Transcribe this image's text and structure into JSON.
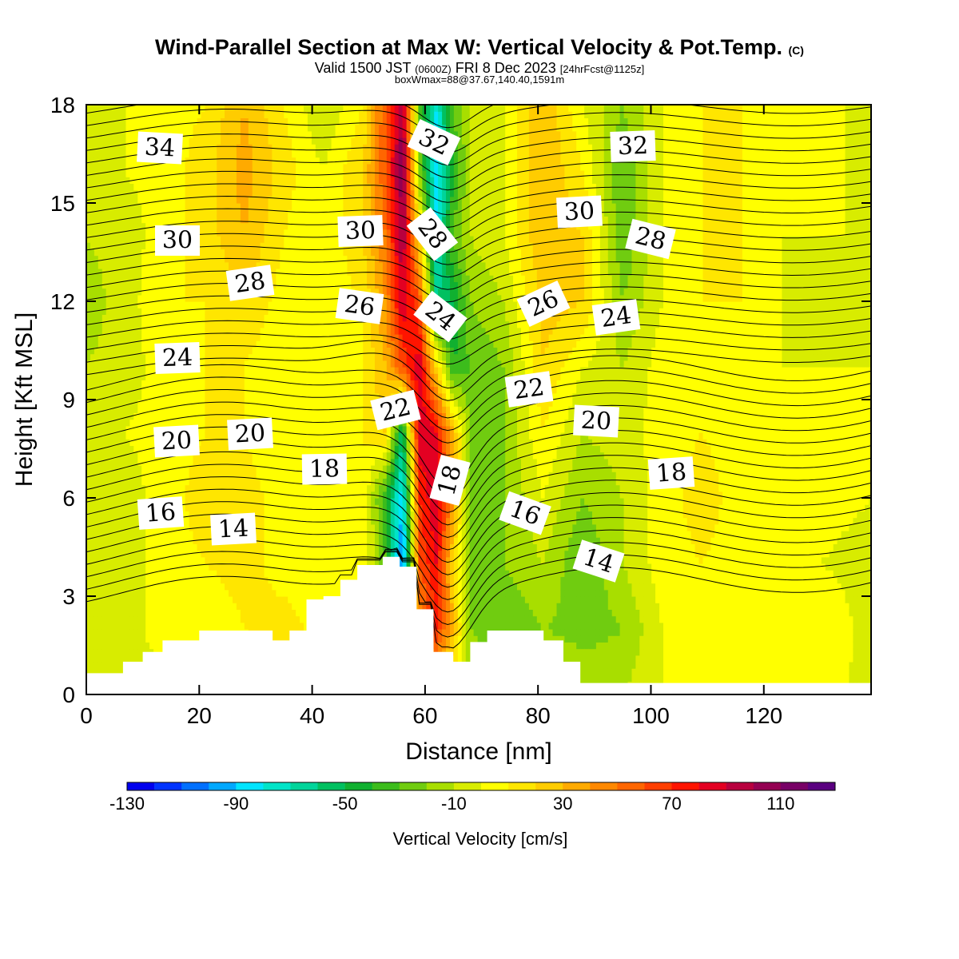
{
  "chart_data": {
    "type": "heatmap",
    "title": "Wind-Parallel Section at Max W: Vertical Velocity & Pot.Temp.",
    "title_mark": "(C)",
    "subtitle_valid": "Valid 1500 JST",
    "subtitle_utc": "(0600Z)",
    "subtitle_date": "FRI 8 Dec 2023",
    "subtitle_fcst": "[24hrFcst@1125z]",
    "subtitle2": "boxWmax=88@37.67,140.40,1591m",
    "xlabel": "Distance [nm]",
    "ylabel": "Height [Kft MSL]",
    "xlim": [
      0,
      139
    ],
    "ylim": [
      0,
      18
    ],
    "x_ticks": [
      0,
      20,
      40,
      60,
      80,
      100,
      120
    ],
    "y_ticks": [
      0,
      3,
      6,
      9,
      12,
      15,
      18
    ],
    "colorbar": {
      "label": "Vertical Velocity [cm/s]",
      "min": -130,
      "max": 130,
      "step": 10,
      "tick_labels": [
        -130,
        -90,
        -50,
        -10,
        30,
        70,
        110
      ],
      "colors": [
        "#0000ee",
        "#0033ff",
        "#0070ff",
        "#00a8ff",
        "#00e4ff",
        "#00e4c8",
        "#00d49a",
        "#00c060",
        "#10b030",
        "#3cbc1c",
        "#70cc10",
        "#a8de00",
        "#d8ec00",
        "#ffff00",
        "#ffe600",
        "#ffcc00",
        "#ffaa00",
        "#ff8800",
        "#ff6600",
        "#ff3e00",
        "#ff1400",
        "#e30022",
        "#b8003e",
        "#940052",
        "#780066",
        "#5a0080"
      ]
    },
    "vertical_velocity_grid": {
      "x": [
        0,
        7,
        14,
        21,
        28,
        35,
        42,
        49,
        53,
        56,
        59,
        62,
        65,
        68,
        74,
        81,
        88,
        95,
        102,
        109,
        116,
        123,
        130,
        139
      ],
      "y": [
        0,
        2,
        4,
        6,
        8,
        10,
        12,
        14,
        16,
        18
      ],
      "values_cm_s": [
        [
          -5,
          0,
          -5,
          0,
          5,
          5,
          5,
          5,
          10,
          5,
          10,
          20,
          0,
          -10,
          -5,
          0,
          -10,
          -10,
          0,
          5,
          0,
          5,
          5,
          -5
        ],
        [
          -10,
          -5,
          5,
          0,
          10,
          15,
          5,
          0,
          5,
          20,
          40,
          70,
          30,
          -20,
          -30,
          -20,
          -25,
          -20,
          0,
          10,
          5,
          0,
          10,
          -5
        ],
        [
          -10,
          -5,
          5,
          10,
          15,
          5,
          5,
          10,
          -30,
          -110,
          60,
          80,
          20,
          -20,
          -20,
          -10,
          -30,
          -10,
          5,
          10,
          5,
          0,
          0,
          -5
        ],
        [
          -5,
          -5,
          5,
          15,
          15,
          5,
          0,
          10,
          -40,
          -90,
          70,
          90,
          40,
          -30,
          -20,
          0,
          -20,
          -10,
          5,
          15,
          5,
          0,
          5,
          0
        ],
        [
          -5,
          0,
          5,
          10,
          10,
          0,
          0,
          10,
          20,
          -60,
          90,
          80,
          30,
          -20,
          -20,
          10,
          -10,
          -5,
          5,
          10,
          5,
          0,
          5,
          0
        ],
        [
          -10,
          -5,
          5,
          10,
          10,
          0,
          5,
          10,
          30,
          60,
          90,
          20,
          -40,
          -30,
          -20,
          20,
          0,
          -10,
          5,
          10,
          5,
          0,
          0,
          0
        ],
        [
          -15,
          -5,
          10,
          10,
          20,
          5,
          5,
          10,
          40,
          90,
          60,
          -60,
          -50,
          -20,
          -10,
          25,
          20,
          -20,
          0,
          10,
          10,
          0,
          -5,
          0
        ],
        [
          -10,
          -5,
          5,
          15,
          30,
          10,
          0,
          20,
          50,
          100,
          20,
          -80,
          -30,
          -10,
          0,
          30,
          20,
          -30,
          0,
          10,
          10,
          0,
          0,
          0
        ],
        [
          -10,
          0,
          5,
          15,
          35,
          15,
          0,
          20,
          60,
          110,
          -20,
          -90,
          -40,
          -10,
          0,
          30,
          10,
          -30,
          0,
          10,
          10,
          0,
          5,
          -5
        ],
        [
          -10,
          0,
          5,
          10,
          30,
          10,
          -10,
          10,
          60,
          100,
          -30,
          -80,
          -30,
          -10,
          0,
          30,
          0,
          -20,
          0,
          10,
          10,
          0,
          5,
          -5
        ]
      ]
    },
    "potential_temperature_labels_C": [
      "34",
      "30",
      "28",
      "24",
      "20",
      "20",
      "16",
      "14",
      "18",
      "26",
      "30",
      "22",
      "32",
      "28",
      "24",
      "18",
      "16",
      "22",
      "26",
      "30",
      "20",
      "14",
      "24",
      "28",
      "32",
      "18"
    ],
    "terrain_kft": {
      "x": [
        0,
        6.5,
        10,
        13.5,
        20,
        33,
        36,
        39,
        42,
        45,
        48,
        52.5,
        55.5,
        57.5,
        58.5,
        61.5,
        65,
        68,
        71,
        81,
        84.5,
        87.5,
        139
      ],
      "top": [
        0.65,
        1.0,
        1.3,
        1.65,
        1.95,
        1.65,
        1.95,
        2.9,
        3.0,
        3.5,
        3.95,
        4.2,
        3.9,
        3.9,
        2.6,
        1.3,
        1.0,
        1.6,
        1.95,
        1.65,
        1.0,
        0.35,
        0.35
      ]
    }
  }
}
